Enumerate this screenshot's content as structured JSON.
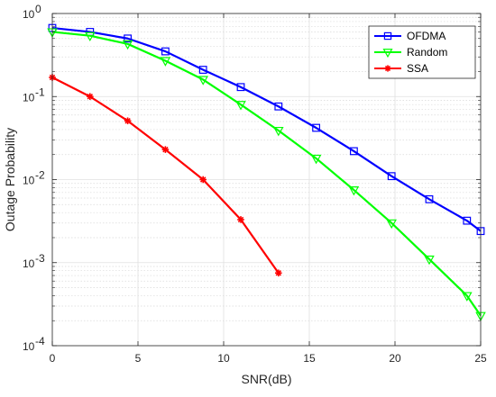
{
  "chart_data": {
    "type": "line",
    "xlabel": "SNR(dB)",
    "ylabel": "Outage Probability",
    "xlim": [
      0,
      25
    ],
    "ylim": [
      0.0001,
      1
    ],
    "yscale": "log",
    "grid": true,
    "legend_position": "top-right",
    "x_ticks": [
      "0",
      "5",
      "10",
      "15",
      "20",
      "25"
    ],
    "y_ticks": [
      {
        "base": "10",
        "exp": "0",
        "value": 1
      },
      {
        "base": "10",
        "exp": "-1",
        "value": 0.1
      },
      {
        "base": "10",
        "exp": "-2",
        "value": 0.01
      },
      {
        "base": "10",
        "exp": "-3",
        "value": 0.001
      },
      {
        "base": "10",
        "exp": "-4",
        "value": 0.0001
      }
    ],
    "series": [
      {
        "name": "OFDMA",
        "color": "#0000ff",
        "marker": "square",
        "x": [
          0,
          2.2,
          4.4,
          6.6,
          8.8,
          11,
          13.2,
          15.4,
          17.6,
          19.8,
          22,
          24.2,
          25
        ],
        "y": [
          0.67,
          0.6,
          0.5,
          0.35,
          0.21,
          0.13,
          0.076,
          0.042,
          0.022,
          0.011,
          0.0058,
          0.0032,
          0.0024
        ]
      },
      {
        "name": "Random",
        "color": "#00ff00",
        "marker": "triangle-down",
        "x": [
          0,
          2.2,
          4.4,
          6.6,
          8.8,
          11,
          13.2,
          15.4,
          17.6,
          19.8,
          22,
          24.2,
          25
        ],
        "y": [
          0.6,
          0.54,
          0.43,
          0.27,
          0.16,
          0.08,
          0.039,
          0.018,
          0.0075,
          0.003,
          0.0011,
          0.0004,
          0.00023
        ]
      },
      {
        "name": "SSA",
        "color": "#ff0000",
        "marker": "asterisk",
        "x": [
          0,
          2.2,
          4.4,
          6.6,
          8.8,
          11,
          13.2
        ],
        "y": [
          0.17,
          0.1,
          0.051,
          0.023,
          0.01,
          0.0033,
          0.00075
        ]
      }
    ]
  }
}
